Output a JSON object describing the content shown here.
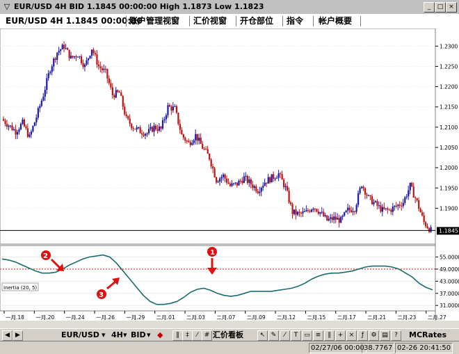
{
  "window": {
    "title": "EUR/USD 4H BID 1.1845 00:00:00 High 1.1873 Low 1.1823",
    "minimize_glyph": "_",
    "maximize_glyph": "□",
    "close_glyph": "×",
    "app_icon_glyph": "▽"
  },
  "tabs": [
    {
      "label": "EUR/USD 4H 1.1845 00:00:00"
    },
    {
      "label": "账户管理视窗"
    },
    {
      "label": "汇价视窗"
    },
    {
      "label": "开仓部位"
    },
    {
      "label": "指令"
    },
    {
      "label": "帐户概要"
    }
  ],
  "price_axis": {
    "ticks": [
      "1.2300",
      "1.2250",
      "1.2200",
      "1.2150",
      "1.2100",
      "1.2050",
      "1.2000",
      "1.1950",
      "1.1900"
    ],
    "current_label": "1.1845"
  },
  "indicator": {
    "name": "Inertia (20, 5)",
    "ticks": [
      "55.0000",
      "49.0000",
      "43.0000",
      "37.0000",
      "31.0000"
    ],
    "markers": [
      "1",
      "2",
      "3"
    ]
  },
  "time_axis": {
    "labels": [
      "一月.18",
      "一月.20",
      "一月.24",
      "一月.26",
      "一月.29",
      "二月.01",
      "二月.03",
      "二月.07",
      "二月.09",
      "二月.12",
      "二月.15",
      "二月.17",
      "二月.21",
      "二月.23",
      "二月.27"
    ]
  },
  "bottom_toolbar": {
    "symbol": "EUR/USD",
    "timeframe": "4H",
    "price_type": "BID",
    "panel_label": "汇价看板",
    "indicator_label": "MCRates"
  },
  "status_bar": {
    "datetime1": "02/27/06 00:00",
    "value": "38.7767",
    "datetime2": "02-26 20:41:50"
  },
  "chart_data": [
    {
      "type": "candlestick",
      "title": "EUR/USD 4H",
      "ylim": [
        1.182,
        1.234
      ],
      "y_ticks": [
        1.23,
        1.225,
        1.22,
        1.215,
        1.21,
        1.205,
        1.2,
        1.195,
        1.19
      ],
      "current_price": 1.1845,
      "x_labels": [
        "一月.18",
        "一月.20",
        "一月.24",
        "一月.26",
        "一月.29",
        "二月.01",
        "二月.03",
        "二月.07",
        "二月.09",
        "二月.12",
        "二月.15",
        "二月.17",
        "二月.21",
        "二月.23",
        "二月.27"
      ],
      "close_path": [
        1.212,
        1.2105,
        1.209,
        1.211,
        1.2075,
        1.2125,
        1.218,
        1.2245,
        1.2285,
        1.23,
        1.227,
        1.228,
        1.225,
        1.2295,
        1.225,
        1.2235,
        1.218,
        1.2185,
        1.212,
        1.21,
        1.209,
        1.2085,
        1.21,
        1.2095,
        1.215,
        1.2145,
        1.208,
        1.206,
        1.208,
        1.205,
        1.2025,
        1.197,
        1.198,
        1.1955,
        1.196,
        1.1975,
        1.196,
        1.1945,
        1.1965,
        1.1975,
        1.1985,
        1.195,
        1.189,
        1.1885,
        1.189,
        1.1905,
        1.189,
        1.187,
        1.1875,
        1.187,
        1.1895,
        1.19,
        1.196,
        1.1925,
        1.191,
        1.1895,
        1.1895,
        1.1905,
        1.1915,
        1.1955,
        1.1915,
        1.1865,
        1.1845
      ]
    },
    {
      "type": "line",
      "title": "Inertia (20, 5)",
      "ylim": [
        29,
        60
      ],
      "y_ticks": [
        55,
        49,
        43,
        37,
        31
      ],
      "reference_line": 49,
      "values": [
        54,
        53.5,
        52.5,
        51,
        49.5,
        48,
        47,
        47,
        47.5,
        49,
        51,
        52.5,
        54,
        55,
        55.5,
        56,
        55,
        52,
        48,
        44,
        40,
        36,
        33,
        31.5,
        31.5,
        32,
        33,
        35,
        37.5,
        39,
        39.5,
        38.5,
        37,
        36,
        35.5,
        36,
        37,
        38,
        38,
        38,
        38,
        38.5,
        39,
        39.5,
        40.5,
        42,
        44,
        45.5,
        46.5,
        47,
        47,
        47.5,
        48,
        49,
        50,
        50.5,
        50.5,
        50.5,
        50,
        49,
        47,
        45,
        42,
        40,
        38.7
      ]
    }
  ]
}
